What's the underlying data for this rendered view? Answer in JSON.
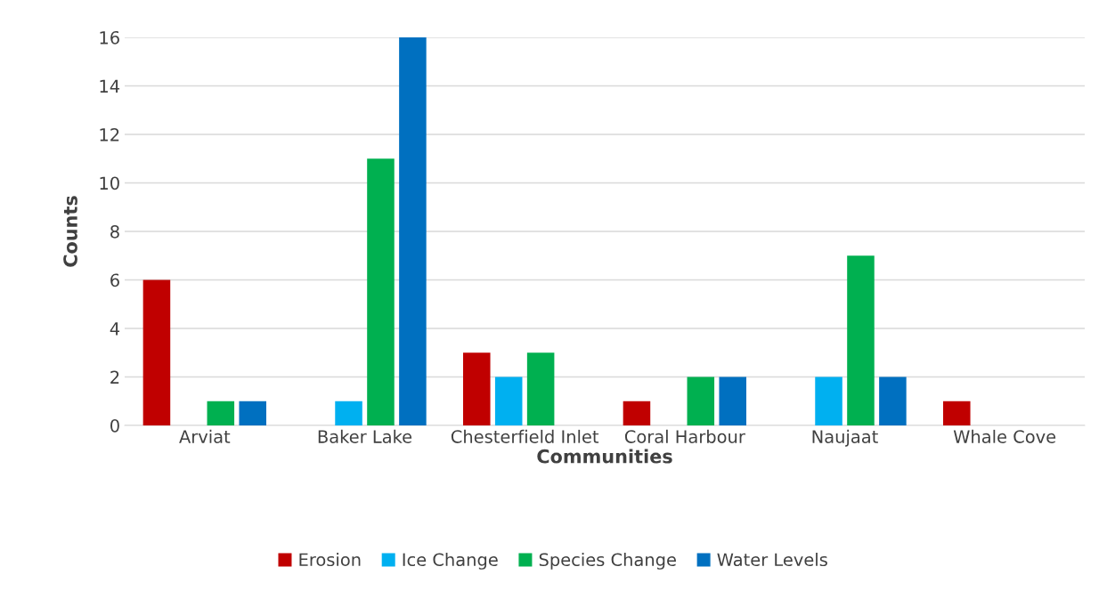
{
  "chart_data": {
    "type": "bar",
    "xlabel": "Communities",
    "ylabel": "Counts",
    "categories": [
      "Arviat",
      "Baker Lake",
      "Chesterfield Inlet",
      "Coral Harbour",
      "Naujaat",
      "Whale Cove"
    ],
    "series": [
      {
        "name": "Erosion",
        "color": "#c00000",
        "values": [
          6,
          0,
          3,
          1,
          0,
          1
        ]
      },
      {
        "name": "Ice Change",
        "color": "#00b0f0",
        "values": [
          0,
          1,
          2,
          0,
          2,
          0
        ]
      },
      {
        "name": "Species Change",
        "color": "#00b050",
        "values": [
          1,
          11,
          3,
          2,
          7,
          0
        ]
      },
      {
        "name": "Water Levels",
        "color": "#0070c0",
        "values": [
          1,
          16,
          0,
          2,
          2,
          0
        ]
      }
    ],
    "ylim": [
      0,
      16
    ],
    "yticks": [
      0,
      2,
      4,
      6,
      8,
      10,
      12,
      14,
      16
    ],
    "grid": "y",
    "legend": "bottom"
  }
}
